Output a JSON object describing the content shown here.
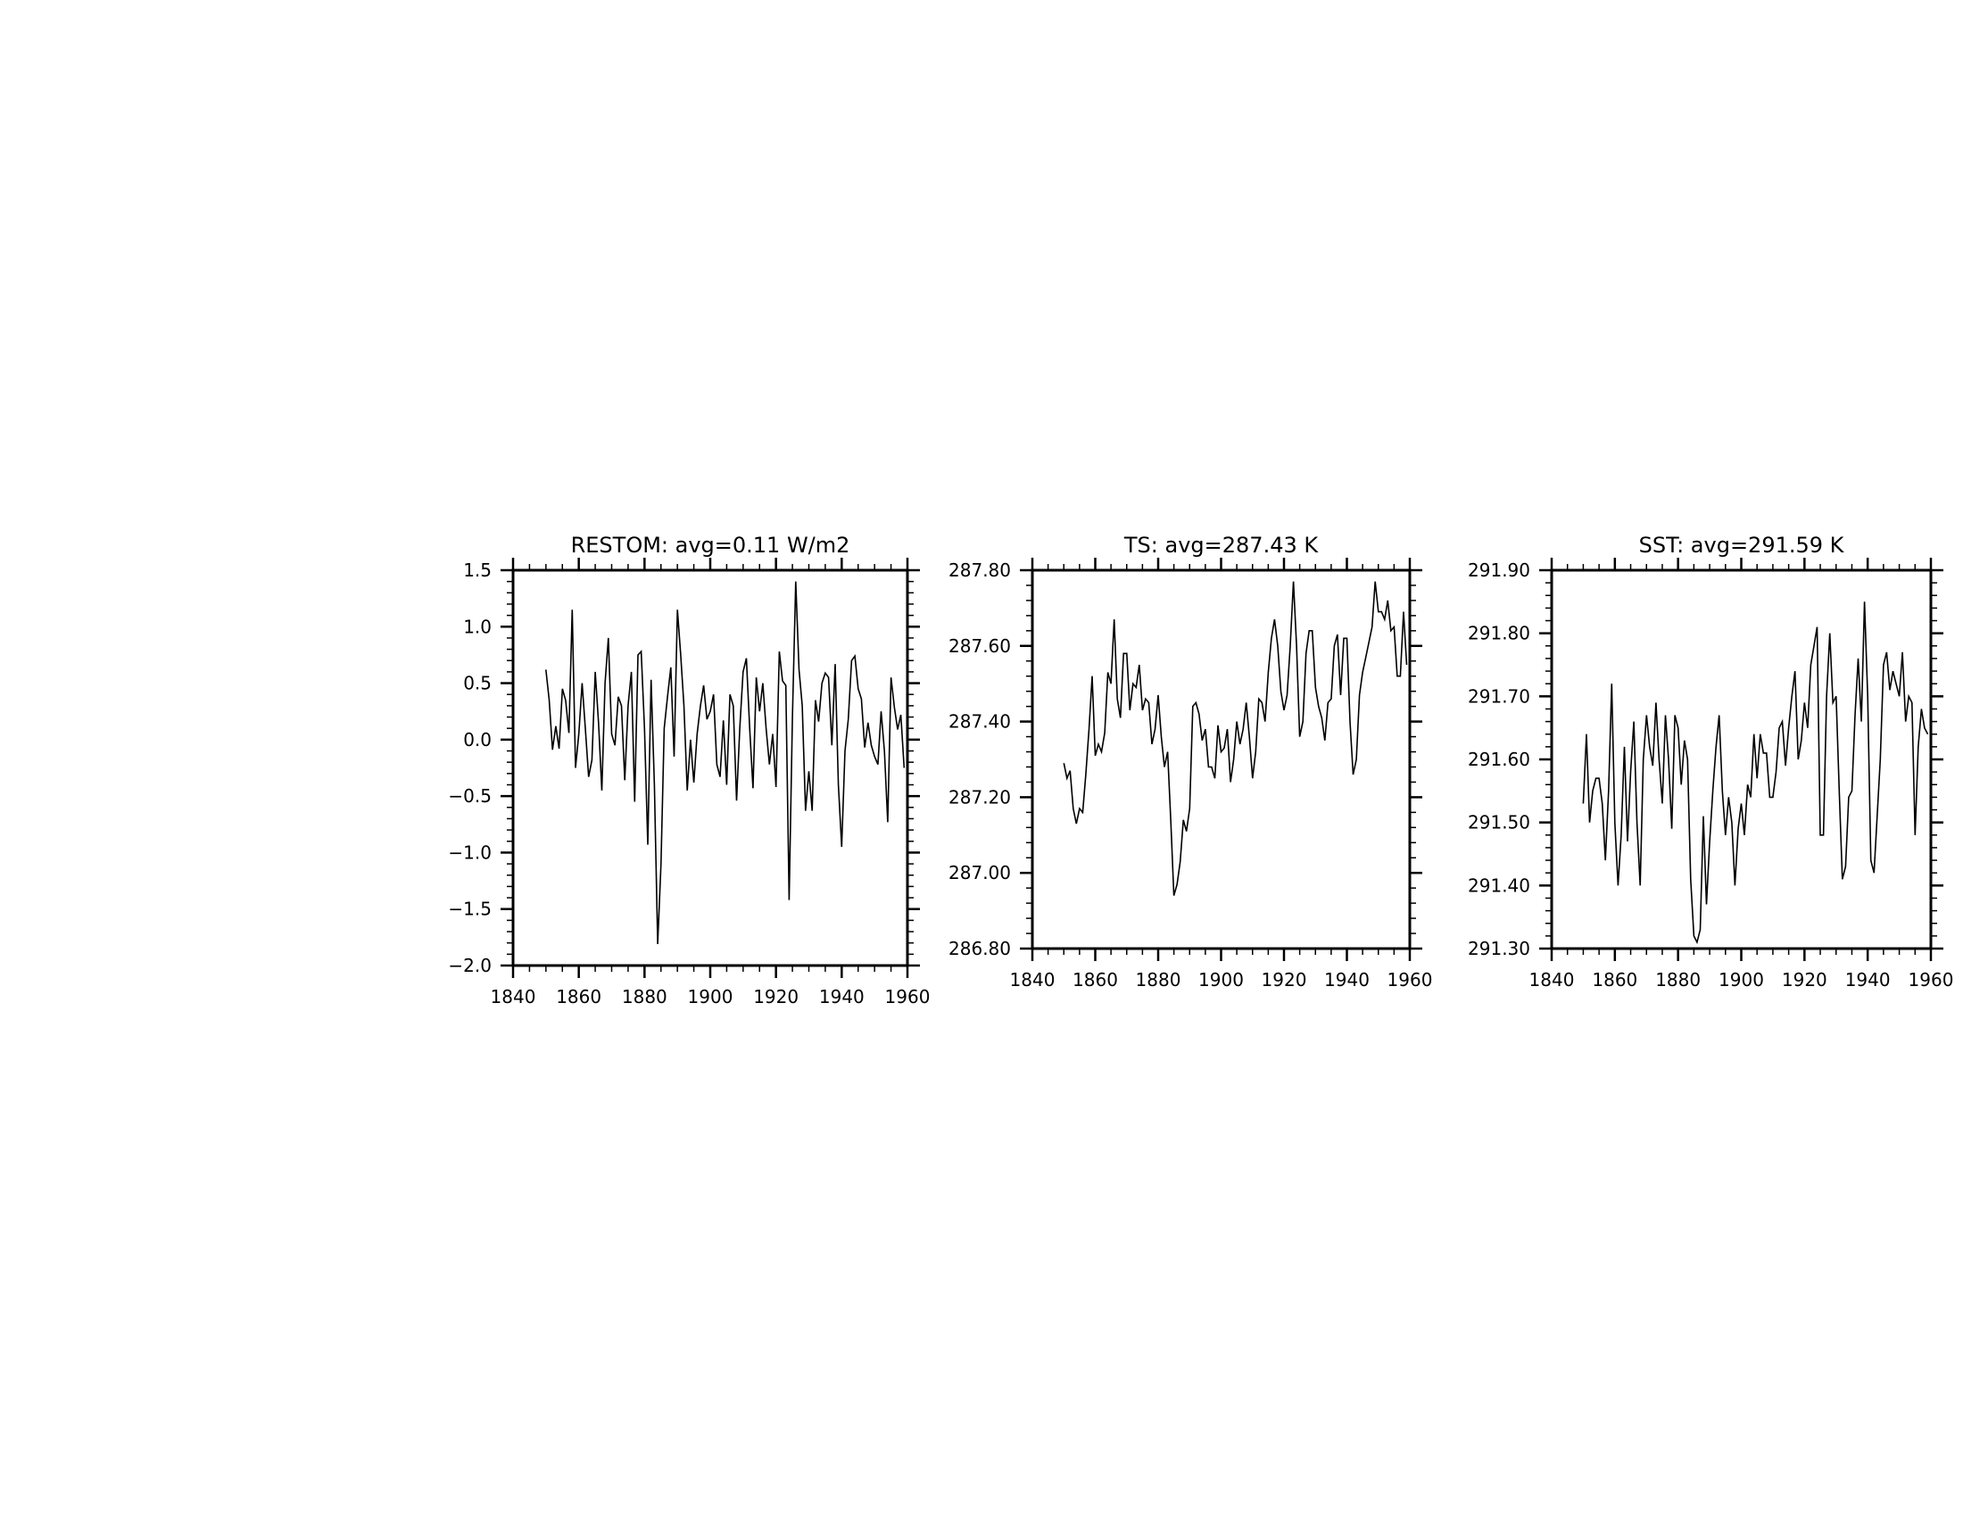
{
  "chart_data": [
    {
      "type": "line",
      "title": "RESTOM: avg=0.11 W/m2",
      "xlabel": "",
      "ylabel": "",
      "xlim": [
        1840,
        1960
      ],
      "ylim": [
        -2.0,
        1.5
      ],
      "x_ticks": [
        "1840",
        "1860",
        "1880",
        "1900",
        "1920",
        "1940",
        "1960"
      ],
      "y_ticks": [
        "−2.0",
        "−1.5",
        "−1.0",
        "−0.5",
        "0.0",
        "0.5",
        "1.0",
        "1.5"
      ],
      "x": [
        1850,
        1851,
        1852,
        1853,
        1854,
        1855,
        1856,
        1857,
        1858,
        1859,
        1860,
        1861,
        1862,
        1863,
        1864,
        1865,
        1866,
        1867,
        1868,
        1869,
        1870,
        1871,
        1872,
        1873,
        1874,
        1875,
        1876,
        1877,
        1878,
        1879,
        1880,
        1881,
        1882,
        1883,
        1884,
        1885,
        1886,
        1887,
        1888,
        1889,
        1890,
        1891,
        1892,
        1893,
        1894,
        1895,
        1896,
        1897,
        1898,
        1899,
        1900,
        1901,
        1902,
        1903,
        1904,
        1905,
        1906,
        1907,
        1908,
        1909,
        1910,
        1911,
        1912,
        1913,
        1914,
        1915,
        1916,
        1917,
        1918,
        1919,
        1920,
        1921,
        1922,
        1923,
        1924,
        1925,
        1926,
        1927,
        1928,
        1929,
        1930,
        1931,
        1932,
        1933,
        1934,
        1935,
        1936,
        1937,
        1938,
        1939,
        1940,
        1941,
        1942,
        1943,
        1944,
        1945,
        1946,
        1947,
        1948,
        1949,
        1950,
        1951,
        1952,
        1953,
        1954,
        1955,
        1956,
        1957,
        1958,
        1959
      ],
      "series": [
        {
          "values": [
            0.62,
            0.35,
            -0.09,
            0.12,
            -0.08,
            0.45,
            0.35,
            0.06,
            1.15,
            -0.25,
            0.05,
            0.5,
            0.1,
            -0.33,
            -0.18,
            0.6,
            0.15,
            -0.45,
            0.5,
            0.9,
            0.05,
            -0.05,
            0.38,
            0.3,
            -0.36,
            0.3,
            0.6,
            -0.55,
            0.75,
            0.78,
            0.1,
            -0.93,
            0.53,
            -0.4,
            -1.81,
            -1.1,
            0.1,
            0.38,
            0.64,
            -0.15,
            1.15,
            0.75,
            0.3,
            -0.45,
            0.0,
            -0.38,
            0.05,
            0.3,
            0.48,
            0.18,
            0.25,
            0.4,
            -0.22,
            -0.33,
            0.17,
            -0.4,
            0.4,
            0.3,
            -0.54,
            0.1,
            0.6,
            0.72,
            0.1,
            -0.43,
            0.55,
            0.25,
            0.5,
            0.1,
            -0.22,
            0.05,
            -0.42,
            0.78,
            0.52,
            0.48,
            -1.42,
            0.2,
            1.4,
            0.62,
            0.3,
            -0.63,
            -0.28,
            -0.63,
            0.35,
            0.16,
            0.5,
            0.59,
            0.55,
            -0.05,
            0.67,
            -0.4,
            -0.95,
            -0.1,
            0.18,
            0.7,
            0.74,
            0.45,
            0.36,
            -0.07,
            0.15,
            -0.05,
            -0.15,
            -0.22,
            0.25,
            -0.1,
            -0.73,
            0.55,
            0.29,
            0.09,
            0.22,
            -0.25
          ]
        }
      ]
    },
    {
      "type": "line",
      "title": "TS: avg=287.43 K",
      "xlabel": "",
      "ylabel": "",
      "xlim": [
        1840,
        1960
      ],
      "ylim": [
        286.8,
        287.8
      ],
      "x_ticks": [
        "1840",
        "1860",
        "1880",
        "1900",
        "1920",
        "1940",
        "1960"
      ],
      "y_ticks": [
        "286.80",
        "287.00",
        "287.20",
        "287.40",
        "287.60",
        "287.80"
      ],
      "x": [
        1850,
        1851,
        1852,
        1853,
        1854,
        1855,
        1856,
        1857,
        1858,
        1859,
        1860,
        1861,
        1862,
        1863,
        1864,
        1865,
        1866,
        1867,
        1868,
        1869,
        1870,
        1871,
        1872,
        1873,
        1874,
        1875,
        1876,
        1877,
        1878,
        1879,
        1880,
        1881,
        1882,
        1883,
        1884,
        1885,
        1886,
        1887,
        1888,
        1889,
        1890,
        1891,
        1892,
        1893,
        1894,
        1895,
        1896,
        1897,
        1898,
        1899,
        1900,
        1901,
        1902,
        1903,
        1904,
        1905,
        1906,
        1907,
        1908,
        1909,
        1910,
        1911,
        1912,
        1913,
        1914,
        1915,
        1916,
        1917,
        1918,
        1919,
        1920,
        1921,
        1922,
        1923,
        1924,
        1925,
        1926,
        1927,
        1928,
        1929,
        1930,
        1931,
        1932,
        1933,
        1934,
        1935,
        1936,
        1937,
        1938,
        1939,
        1940,
        1941,
        1942,
        1943,
        1944,
        1945,
        1946,
        1947,
        1948,
        1949,
        1950,
        1951,
        1952,
        1953,
        1954,
        1955,
        1956,
        1957,
        1958,
        1959
      ],
      "series": [
        {
          "values": [
            287.29,
            287.25,
            287.27,
            287.17,
            287.13,
            287.17,
            287.16,
            287.26,
            287.38,
            287.52,
            287.31,
            287.34,
            287.32,
            287.37,
            287.53,
            287.5,
            287.67,
            287.46,
            287.41,
            287.58,
            287.58,
            287.43,
            287.5,
            287.49,
            287.55,
            287.43,
            287.46,
            287.45,
            287.34,
            287.38,
            287.47,
            287.36,
            287.28,
            287.32,
            287.14,
            286.94,
            286.97,
            287.03,
            287.14,
            287.11,
            287.17,
            287.44,
            287.45,
            287.42,
            287.35,
            287.38,
            287.28,
            287.28,
            287.25,
            287.39,
            287.32,
            287.33,
            287.38,
            287.24,
            287.3,
            287.4,
            287.34,
            287.38,
            287.45,
            287.36,
            287.25,
            287.32,
            287.46,
            287.45,
            287.4,
            287.53,
            287.62,
            287.67,
            287.6,
            287.48,
            287.43,
            287.47,
            287.6,
            287.77,
            287.6,
            287.36,
            287.4,
            287.58,
            287.64,
            287.64,
            287.49,
            287.44,
            287.41,
            287.35,
            287.45,
            287.46,
            287.6,
            287.63,
            287.47,
            287.62,
            287.62,
            287.4,
            287.26,
            287.3,
            287.47,
            287.53,
            287.57,
            287.61,
            287.65,
            287.77,
            287.69,
            287.69,
            287.67,
            287.72,
            287.64,
            287.65,
            287.52,
            287.52,
            287.69,
            287.55
          ]
        }
      ]
    },
    {
      "type": "line",
      "title": "SST: avg=291.59 K",
      "xlabel": "",
      "ylabel": "",
      "xlim": [
        1840,
        1960
      ],
      "ylim": [
        291.3,
        291.9
      ],
      "x_ticks": [
        "1840",
        "1860",
        "1880",
        "1900",
        "1920",
        "1940",
        "1960"
      ],
      "y_ticks": [
        "291.30",
        "291.40",
        "291.50",
        "291.60",
        "291.70",
        "291.80",
        "291.90"
      ],
      "x": [
        1850,
        1851,
        1852,
        1853,
        1854,
        1855,
        1856,
        1857,
        1858,
        1859,
        1860,
        1861,
        1862,
        1863,
        1864,
        1865,
        1866,
        1867,
        1868,
        1869,
        1870,
        1871,
        1872,
        1873,
        1874,
        1875,
        1876,
        1877,
        1878,
        1879,
        1880,
        1881,
        1882,
        1883,
        1884,
        1885,
        1886,
        1887,
        1888,
        1889,
        1890,
        1891,
        1892,
        1893,
        1894,
        1895,
        1896,
        1897,
        1898,
        1899,
        1900,
        1901,
        1902,
        1903,
        1904,
        1905,
        1906,
        1907,
        1908,
        1909,
        1910,
        1911,
        1912,
        1913,
        1914,
        1915,
        1916,
        1917,
        1918,
        1919,
        1920,
        1921,
        1922,
        1923,
        1924,
        1925,
        1926,
        1927,
        1928,
        1929,
        1930,
        1931,
        1932,
        1933,
        1934,
        1935,
        1936,
        1937,
        1938,
        1939,
        1940,
        1941,
        1942,
        1943,
        1944,
        1945,
        1946,
        1947,
        1948,
        1949,
        1950,
        1951,
        1952,
        1953,
        1954,
        1955,
        1956,
        1957,
        1958,
        1959
      ],
      "series": [
        {
          "values": [
            291.53,
            291.64,
            291.5,
            291.55,
            291.57,
            291.57,
            291.53,
            291.44,
            291.55,
            291.72,
            291.5,
            291.4,
            291.48,
            291.62,
            291.47,
            291.58,
            291.66,
            291.5,
            291.4,
            291.6,
            291.67,
            291.62,
            291.59,
            291.69,
            291.6,
            291.53,
            291.67,
            291.6,
            291.49,
            291.67,
            291.65,
            291.56,
            291.63,
            291.6,
            291.41,
            291.32,
            291.31,
            291.33,
            291.51,
            291.37,
            291.47,
            291.55,
            291.62,
            291.67,
            291.55,
            291.48,
            291.54,
            291.5,
            291.4,
            291.49,
            291.53,
            291.48,
            291.56,
            291.54,
            291.64,
            291.57,
            291.64,
            291.61,
            291.61,
            291.54,
            291.54,
            291.58,
            291.65,
            291.66,
            291.59,
            291.65,
            291.7,
            291.74,
            291.6,
            291.63,
            291.69,
            291.65,
            291.75,
            291.78,
            291.81,
            291.48,
            291.48,
            291.7,
            291.8,
            291.69,
            291.7,
            291.55,
            291.41,
            291.43,
            291.54,
            291.55,
            291.67,
            291.76,
            291.66,
            291.85,
            291.7,
            291.44,
            291.42,
            291.51,
            291.6,
            291.75,
            291.77,
            291.71,
            291.74,
            291.72,
            291.7,
            291.77,
            291.66,
            291.7,
            291.69,
            291.48,
            291.62,
            291.68,
            291.65,
            291.64
          ]
        }
      ]
    }
  ]
}
